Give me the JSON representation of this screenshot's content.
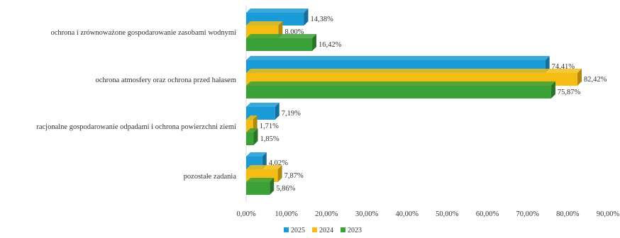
{
  "chart_data": {
    "type": "bar",
    "orientation": "horizontal",
    "style": "3d",
    "categories": [
      "ochrona i zrównoważone gospodarowanie zasobami wodnymi",
      "ochrona atmosfery oraz ochrona przed hałasem",
      "racjonalne gospodarowanie odpadami i ochrona powierzchni ziemi",
      "pozostałe zadania"
    ],
    "series": [
      {
        "name": "2025",
        "color": "#1a9ad6",
        "values": [
          14.38,
          74.41,
          7.19,
          4.02
        ],
        "labels": [
          "14,38%",
          "74,41%",
          "7,19%",
          "4,02%"
        ]
      },
      {
        "name": "2024",
        "color": "#f5bd14",
        "values": [
          8.0,
          82.42,
          1.71,
          7.87
        ],
        "labels": [
          "8,00%",
          "82,42%",
          "1,71%",
          "7,87%"
        ]
      },
      {
        "name": "2023",
        "color": "#3aa038",
        "values": [
          16.42,
          75.87,
          1.85,
          5.86
        ],
        "labels": [
          "16,42%",
          "75,87%",
          "1,85%",
          "5,86%"
        ]
      }
    ],
    "xlim": [
      0,
      90
    ],
    "xticks": [
      0,
      10,
      20,
      30,
      40,
      50,
      60,
      70,
      80,
      90
    ],
    "xtick_labels": [
      "0,00%",
      "10,00%",
      "20,00%",
      "30,00%",
      "40,00%",
      "50,00%",
      "60,00%",
      "70,00%",
      "80,00%",
      "90,00%"
    ],
    "grid": false,
    "legend": "bottom",
    "title": "",
    "xlabel": "",
    "ylabel": ""
  }
}
